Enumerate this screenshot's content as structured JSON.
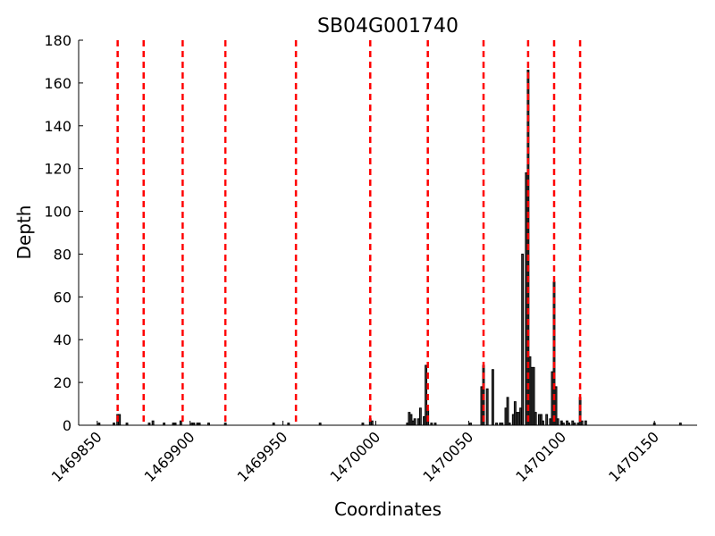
{
  "chart_data": {
    "type": "bar",
    "title": "SB04G001740",
    "xlabel": "Coordinates",
    "ylabel": "Depth",
    "x": [
      1469851,
      1469859,
      1469861,
      1469862,
      1469866,
      1469878,
      1469880,
      1469886,
      1469891,
      1469892,
      1469895,
      1469901,
      1469902,
      1469904,
      1469905,
      1469910,
      1469919,
      1469945,
      1469953,
      1469970,
      1469993,
      1469997,
      1469998,
      1470017,
      1470018,
      1470019,
      1470020,
      1470021,
      1470023,
      1470024,
      1470026,
      1470027,
      1470028,
      1470030,
      1470032,
      1470051,
      1470057,
      1470058,
      1470060,
      1470063,
      1470065,
      1470067,
      1470068,
      1470070,
      1470071,
      1470072,
      1470074,
      1470075,
      1470076,
      1470077,
      1470078,
      1470079,
      1470081,
      1470082,
      1470083,
      1470084,
      1470085,
      1470086,
      1470088,
      1470089,
      1470090,
      1470092,
      1470094,
      1470095,
      1470096,
      1470097,
      1470098,
      1470100,
      1470101,
      1470103,
      1470104,
      1470106,
      1470107,
      1470109,
      1470110,
      1470111,
      1470113,
      1470150,
      1470164
    ],
    "values": [
      1,
      1,
      5,
      5,
      1,
      1,
      2,
      1,
      1,
      1,
      2,
      1,
      1,
      1,
      1,
      1,
      1,
      1,
      1,
      1,
      1,
      3,
      2,
      1,
      6,
      5,
      2,
      3,
      3,
      8,
      4,
      28,
      7,
      1,
      1,
      1,
      18,
      28,
      17,
      26,
      1,
      1,
      1,
      8,
      13,
      1,
      5,
      11,
      6,
      6,
      8,
      80,
      118,
      166,
      32,
      27,
      27,
      6,
      5,
      5,
      2,
      5,
      3,
      25,
      67,
      18,
      3,
      2,
      1,
      2,
      1,
      2,
      1,
      1,
      13,
      2,
      2,
      1,
      1
    ],
    "color": "#444444",
    "vlines": [
      1469861,
      1469875,
      1469896,
      1469919,
      1469957,
      1469997,
      1470028,
      1470058,
      1470082,
      1470096,
      1470110
    ],
    "vline_color": "#ff0000",
    "xlim": [
      1469840,
      1470173
    ],
    "ylim": [
      0,
      180
    ],
    "xticks": [
      1469850,
      1469900,
      1469950,
      1470000,
      1470050,
      1470100,
      1470150
    ],
    "yticks": [
      0,
      20,
      40,
      60,
      80,
      100,
      120,
      140,
      160,
      180
    ]
  }
}
